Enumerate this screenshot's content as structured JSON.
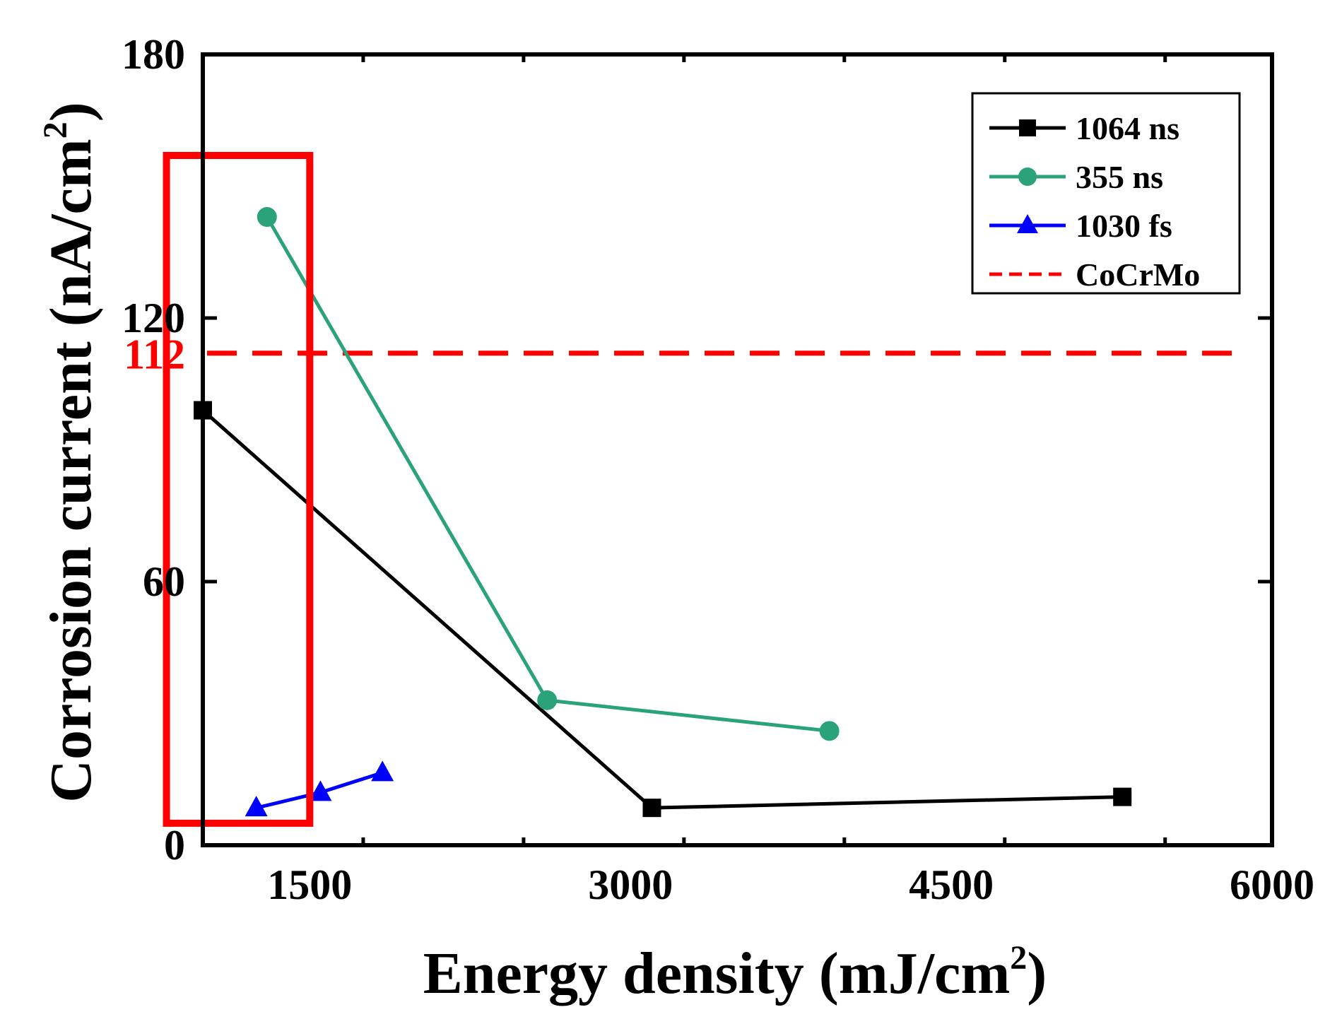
{
  "chart_data": {
    "type": "line",
    "xlabel": "Energy density (mJ/cm",
    "xlabel_sup": "2",
    "xlabel_end": ")",
    "ylabel": "Corrosion current (nA/cm",
    "ylabel_sup": "2",
    "ylabel_end": ")",
    "xlim": [
      1000,
      6000
    ],
    "ylim": [
      0,
      180
    ],
    "xticks": [
      1500,
      3000,
      4500,
      6000
    ],
    "yticks": [
      0,
      60,
      120,
      180
    ],
    "legend_position": "top-right",
    "series": [
      {
        "name": "1064 ns",
        "color": "#000000",
        "marker": "square",
        "x": [
          1000,
          3100,
          5300
        ],
        "y": [
          99,
          8.5,
          11
        ]
      },
      {
        "name": "355 ns",
        "color": "#2aa37b",
        "marker": "circle",
        "x": [
          1300,
          2610,
          3930
        ],
        "y": [
          143,
          33,
          26
        ]
      },
      {
        "name": "1030 fs",
        "color": "#0000ff",
        "marker": "triangle",
        "x": [
          1250,
          1550,
          1840
        ],
        "y": [
          8.5,
          12,
          16.5
        ]
      }
    ],
    "reference_line": {
      "name": "CoCrMo",
      "value": 112,
      "label": "112",
      "color": "#ff0000",
      "style": "dashed"
    },
    "highlight_box": {
      "color": "#ff0000",
      "x_range": [
        830,
        1500
      ],
      "y_range": [
        5,
        157
      ]
    }
  }
}
